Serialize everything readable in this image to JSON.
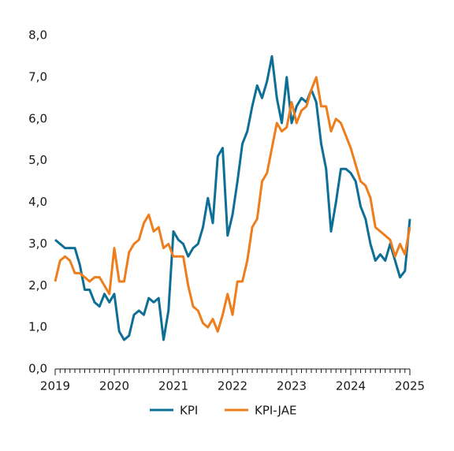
{
  "chart_data": {
    "type": "line",
    "categories": [
      "2019",
      null,
      null,
      null,
      null,
      null,
      null,
      null,
      null,
      null,
      null,
      null,
      "2020",
      null,
      null,
      null,
      null,
      null,
      null,
      null,
      null,
      null,
      null,
      null,
      "2021",
      null,
      null,
      null,
      null,
      null,
      null,
      null,
      null,
      null,
      null,
      null,
      "2022",
      null,
      null,
      null,
      null,
      null,
      null,
      null,
      null,
      null,
      null,
      null,
      "2023",
      null,
      null,
      null,
      null,
      null,
      null,
      null,
      null,
      null,
      null,
      null,
      "2024",
      null,
      null,
      null,
      null,
      null,
      null,
      null,
      null,
      null,
      null,
      null,
      "2025"
    ],
    "series": [
      {
        "name": "KPI",
        "color": "#0e6f96",
        "values": [
          3.1,
          3.0,
          2.9,
          2.9,
          2.9,
          2.5,
          1.9,
          1.9,
          1.6,
          1.5,
          1.8,
          1.6,
          1.8,
          0.9,
          0.7,
          0.8,
          1.3,
          1.4,
          1.3,
          1.7,
          1.6,
          1.7,
          0.7,
          1.4,
          3.3,
          3.1,
          3.0,
          2.7,
          2.9,
          3.0,
          3.4,
          4.1,
          3.5,
          5.1,
          5.3,
          3.2,
          3.7,
          4.5,
          5.4,
          5.7,
          6.3,
          6.8,
          6.5,
          6.9,
          7.5,
          6.5,
          5.9,
          7.0,
          5.9,
          6.3,
          6.5,
          6.4,
          6.7,
          6.4,
          5.4,
          4.8,
          3.3,
          4.0,
          4.8,
          4.8,
          4.7,
          4.5,
          3.9,
          3.6,
          3.0,
          2.6,
          2.75,
          2.6,
          3.0,
          2.6,
          2.2,
          2.35,
          3.6
        ]
      },
      {
        "name": "KPI-JAE",
        "color": "#ee7d1b",
        "values": [
          2.1,
          2.6,
          2.7,
          2.6,
          2.3,
          2.3,
          2.2,
          2.1,
          2.2,
          2.2,
          2.0,
          1.8,
          2.9,
          2.1,
          2.1,
          2.8,
          3.0,
          3.1,
          3.5,
          3.7,
          3.3,
          3.4,
          2.9,
          3.0,
          2.7,
          2.7,
          2.7,
          2.0,
          1.5,
          1.4,
          1.1,
          1.0,
          1.2,
          0.9,
          1.3,
          1.8,
          1.3,
          2.1,
          2.1,
          2.6,
          3.4,
          3.6,
          4.5,
          4.7,
          5.3,
          5.9,
          5.7,
          5.8,
          6.4,
          5.9,
          6.2,
          6.3,
          6.7,
          7.0,
          6.3,
          6.3,
          5.7,
          6.0,
          5.9,
          5.6,
          5.3,
          4.9,
          4.5,
          4.4,
          4.1,
          3.4,
          3.3,
          3.2,
          3.1,
          2.7,
          3.0,
          2.75,
          3.4
        ]
      }
    ],
    "ylim": [
      0,
      8
    ],
    "yticks": [
      {
        "value": 0,
        "label": "0,0"
      },
      {
        "value": 1,
        "label": "1,0"
      },
      {
        "value": 2,
        "label": "2,0"
      },
      {
        "value": 3,
        "label": "3,0"
      },
      {
        "value": 4,
        "label": "4,0"
      },
      {
        "value": 5,
        "label": "5,0"
      },
      {
        "value": 6,
        "label": "6,0"
      },
      {
        "value": 7,
        "label": "7,0"
      },
      {
        "value": 8,
        "label": "8,0"
      }
    ],
    "grid": false,
    "legend": "bottom"
  }
}
